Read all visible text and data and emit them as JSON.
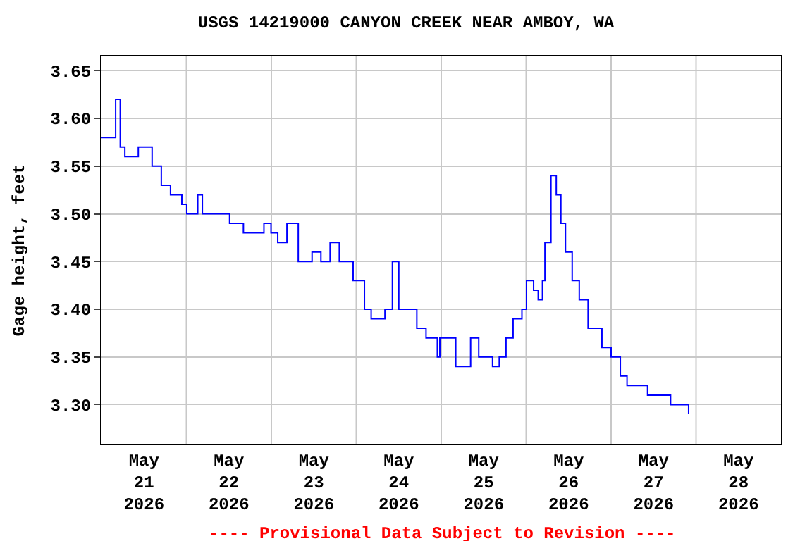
{
  "chart_data": {
    "type": "step",
    "title": "USGS 14219000 CANYON CREEK NEAR AMBOY, WA",
    "ylabel": "Gage height, feet",
    "annotations": [
      "---- Provisional Data Subject to Revision ----"
    ],
    "x": [
      "2026-05-21T00:00",
      "2026-05-21T04:00",
      "2026-05-21T05:18",
      "2026-05-21T06:36",
      "2026-05-21T10:24",
      "2026-05-21T14:18",
      "2026-05-21T16:54",
      "2026-05-21T19:30",
      "2026-05-21T22:42",
      "2026-05-22T00:06",
      "2026-05-22T03:12",
      "2026-05-22T04:30",
      "2026-05-22T12:12",
      "2026-05-22T16:06",
      "2026-05-22T21:54",
      "2026-05-22T23:54",
      "2026-05-23T01:48",
      "2026-05-23T04:24",
      "2026-05-23T06:18",
      "2026-05-23T07:36",
      "2026-05-23T11:30",
      "2026-05-23T14:00",
      "2026-05-23T16:36",
      "2026-05-23T19:12",
      "2026-05-23T22:12",
      "2026-05-23T23:06",
      "2026-05-24T02:18",
      "2026-05-24T04:12",
      "2026-05-24T08:06",
      "2026-05-24T10:12",
      "2026-05-24T12:00",
      "2026-05-24T17:06",
      "2026-05-24T19:42",
      "2026-05-24T22:54",
      "2026-05-24T23:36",
      "2026-05-25T04:06",
      "2026-05-25T08:18",
      "2026-05-25T10:36",
      "2026-05-25T14:30",
      "2026-05-25T16:24",
      "2026-05-25T18:18",
      "2026-05-25T20:18",
      "2026-05-25T22:48",
      "2026-05-26T00:06",
      "2026-05-26T02:06",
      "2026-05-26T03:24",
      "2026-05-26T04:36",
      "2026-05-26T05:18",
      "2026-05-26T07:00",
      "2026-05-26T08:30",
      "2026-05-26T09:48",
      "2026-05-26T11:06",
      "2026-05-26T13:00",
      "2026-05-26T15:00",
      "2026-05-26T17:30",
      "2026-05-26T21:24",
      "2026-05-27T00:00",
      "2026-05-27T02:36",
      "2026-05-27T04:30",
      "2026-05-27T10:18",
      "2026-05-27T16:48",
      "2026-05-27T21:54"
    ],
    "series": [
      {
        "color": "#0000ff",
        "values": [
          3.58,
          3.62,
          3.57,
          3.56,
          3.57,
          3.55,
          3.53,
          3.52,
          3.51,
          3.5,
          3.52,
          3.5,
          3.49,
          3.48,
          3.49,
          3.48,
          3.47,
          3.49,
          3.49,
          3.45,
          3.46,
          3.45,
          3.47,
          3.45,
          3.45,
          3.43,
          3.4,
          3.39,
          3.4,
          3.45,
          3.4,
          3.38,
          3.37,
          3.35,
          3.37,
          3.34,
          3.37,
          3.35,
          3.34,
          3.35,
          3.37,
          3.39,
          3.4,
          3.43,
          3.42,
          3.41,
          3.43,
          3.47,
          3.54,
          3.52,
          3.49,
          3.46,
          3.43,
          3.41,
          3.38,
          3.36,
          3.35,
          3.33,
          3.32,
          3.31,
          3.3,
          3.29
        ]
      }
    ],
    "xlim": [
      "2026-05-21T00:00",
      "2026-05-29T00:00"
    ],
    "xticks": [
      {
        "value": "2026-05-21T12:00",
        "label": "May\n21\n2026"
      },
      {
        "value": "2026-05-22T12:00",
        "label": "May\n22\n2026"
      },
      {
        "value": "2026-05-23T12:00",
        "label": "May\n23\n2026"
      },
      {
        "value": "2026-05-24T12:00",
        "label": "May\n24\n2026"
      },
      {
        "value": "2026-05-25T12:00",
        "label": "May\n25\n2026"
      },
      {
        "value": "2026-05-26T12:00",
        "label": "May\n26\n2026"
      },
      {
        "value": "2026-05-27T12:00",
        "label": "May\n27\n2026"
      },
      {
        "value": "2026-05-28T12:00",
        "label": "May\n28\n2026"
      },
      {
        "value": "2026-05-22T00:00",
        "label": null
      },
      {
        "value": "2026-05-23T00:00",
        "label": null
      },
      {
        "value": "2026-05-24T00:00",
        "label": null
      },
      {
        "value": "2026-05-25T00:00",
        "label": null
      },
      {
        "value": "2026-05-26T00:00",
        "label": null
      },
      {
        "value": "2026-05-27T00:00",
        "label": null
      },
      {
        "value": "2026-05-28T00:00",
        "label": null
      }
    ],
    "ylim": [
      3.259,
      3.665
    ],
    "yticks": [
      {
        "value": 3.3,
        "label": "3.30"
      },
      {
        "value": 3.35,
        "label": "3.35"
      },
      {
        "value": 3.4,
        "label": "3.40"
      },
      {
        "value": 3.45,
        "label": "3.45"
      },
      {
        "value": 3.5,
        "label": "3.50"
      },
      {
        "value": 3.55,
        "label": "3.55"
      },
      {
        "value": 3.6,
        "label": "3.60"
      },
      {
        "value": 3.65,
        "label": "3.65"
      }
    ],
    "grid": true
  }
}
